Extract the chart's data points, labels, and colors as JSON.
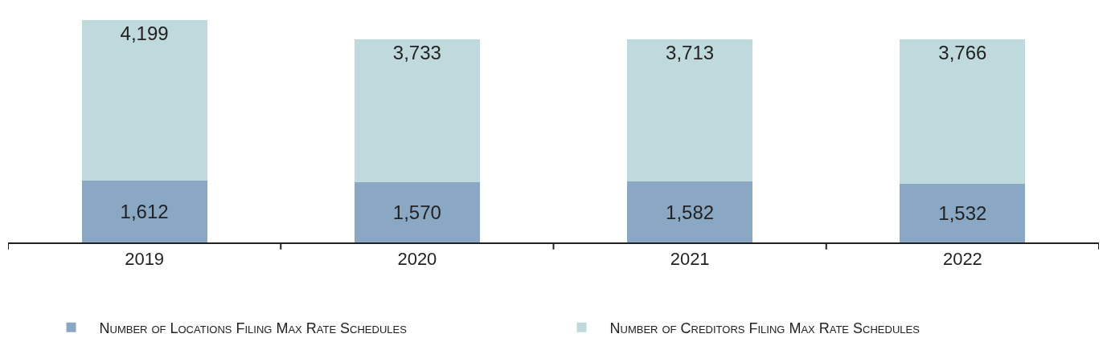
{
  "chart_data": {
    "type": "bar",
    "stacked": true,
    "categories": [
      "2019",
      "2020",
      "2021",
      "2022"
    ],
    "series": [
      {
        "name": "Number of Locations Filing Max Rate Schedules",
        "color": "#8aa8c4",
        "values": [
          1612,
          1570,
          1582,
          1532
        ],
        "value_labels": [
          "1,612",
          "1,570",
          "1,582",
          "1,532"
        ]
      },
      {
        "name": "Number of Creditors Filing Max Rate Schedules",
        "color": "#c0d9dc",
        "values": [
          4199,
          3733,
          3713,
          3766
        ],
        "value_labels": [
          "4,199",
          "3,733",
          "3,713",
          "3,766"
        ]
      }
    ],
    "legend": "bottom",
    "tick_labels": "x"
  }
}
